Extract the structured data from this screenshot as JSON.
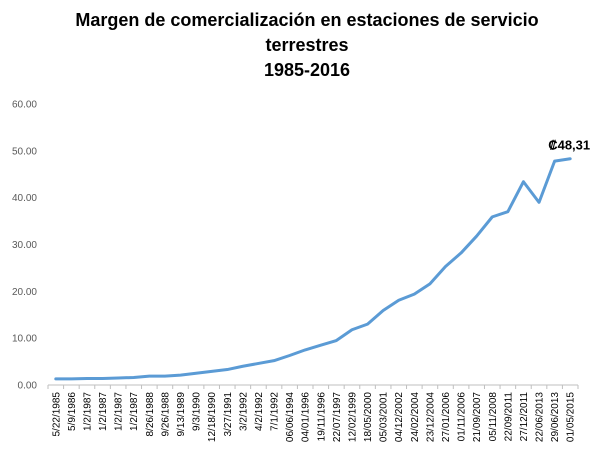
{
  "chart_data": {
    "type": "line",
    "title": [
      "Margen de comercialización en estaciones de servicio",
      "terrestres",
      "1985-2016"
    ],
    "xlabel": "",
    "ylabel": "",
    "ylim": [
      0,
      60
    ],
    "yticks": [
      "0.00",
      "10.00",
      "20.00",
      "30.00",
      "40.00",
      "50.00",
      "60.00"
    ],
    "grid": false,
    "legend": "none",
    "line_color": "#5B9BD5",
    "categories": [
      "5/22/1985",
      "5/9/1986",
      "1/2/1987",
      "1/2/1987",
      "1/2/1987",
      "1/2/1987",
      "8/26/1988",
      "9/26/1988",
      "9/13/1989",
      "9/3/1990",
      "12/18/1990",
      "3/27/1991",
      "3/2/1992",
      "4/2/1992",
      "7/1/1992",
      "06/06/1994",
      "04/01/1996",
      "19/11/1996",
      "22/07/1997",
      "12/02/1999",
      "18/05/2000",
      "05/03/2001",
      "04/12/2002",
      "24/02/2004",
      "23/12/2004",
      "27/01/2006",
      "01/11/2006",
      "21/09/2007",
      "05/11/2008",
      "22/09/2011",
      "27/12/2011",
      "22/06/2013",
      "29/06/2013",
      "01/05/2015"
    ],
    "values": [
      1.3,
      1.3,
      1.4,
      1.4,
      1.5,
      1.6,
      1.9,
      1.9,
      2.1,
      2.5,
      2.9,
      3.3,
      4.0,
      4.6,
      5.2,
      6.3,
      7.5,
      8.5,
      9.5,
      11.8,
      13.0,
      15.9,
      18.1,
      19.4,
      21.6,
      25.3,
      28.2,
      31.8,
      35.9,
      37.0,
      43.4,
      39.0,
      47.8,
      48.31
    ],
    "annotation": {
      "index": 33,
      "text": "₡48,31"
    }
  }
}
